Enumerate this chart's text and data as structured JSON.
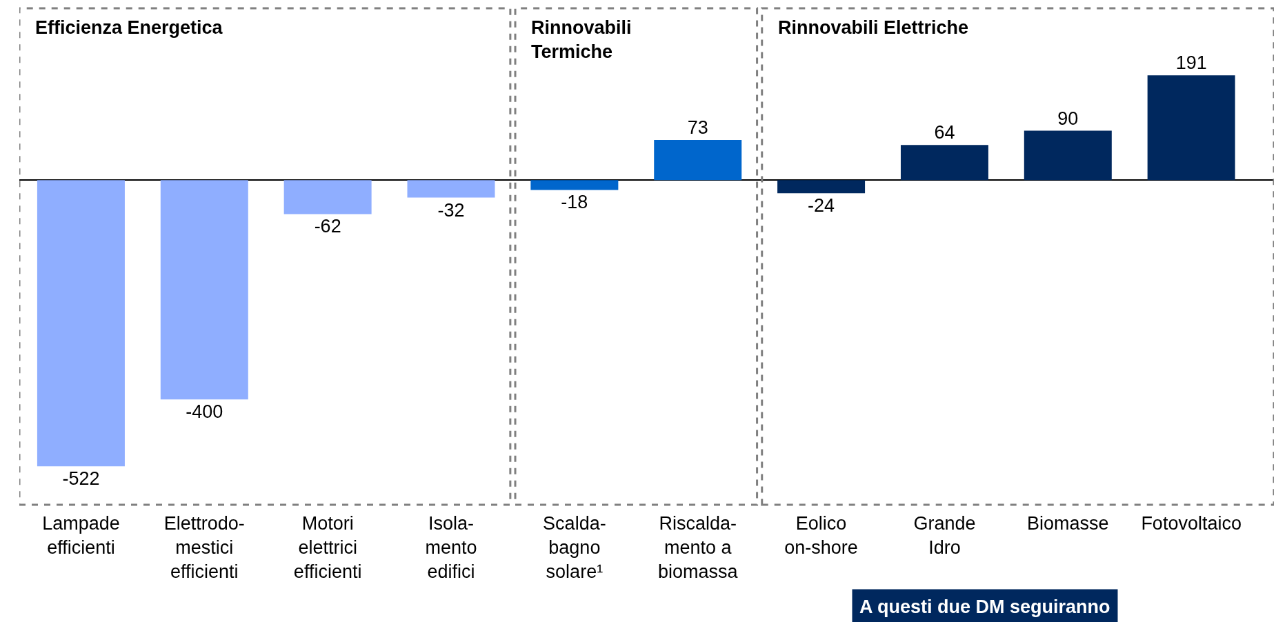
{
  "chart_data": {
    "type": "bar",
    "categories": [
      "Lampade\nefficienti",
      "Elettrodo-\nmestici\nefficienti",
      "Motori\nelettrici\nefficienti",
      "Isola-\nmento\nedifici",
      "Scalda-\nbagno\nsolare¹",
      "Riscalda-\nmento a\nbiomassa",
      "Eolico\non-shore",
      "Grande\nIdro",
      "Biomasse",
      "Fotovoltaico"
    ],
    "values": [
      -522,
      -400,
      -62,
      -32,
      -18,
      73,
      -24,
      64,
      90,
      191
    ],
    "colors": [
      "#8faeff",
      "#8faeff",
      "#8faeff",
      "#8faeff",
      "#0066cc",
      "#0066cc",
      "#00285e",
      "#00285e",
      "#00285e",
      "#00285e"
    ],
    "data_labels": true,
    "tick_labels": "x",
    "annotations": [
      "Efficienza Energetica",
      "Rinnovabili\nTermiche",
      "Rinnovabili Elettriche",
      "A questi due DM seguiranno"
    ]
  }
}
